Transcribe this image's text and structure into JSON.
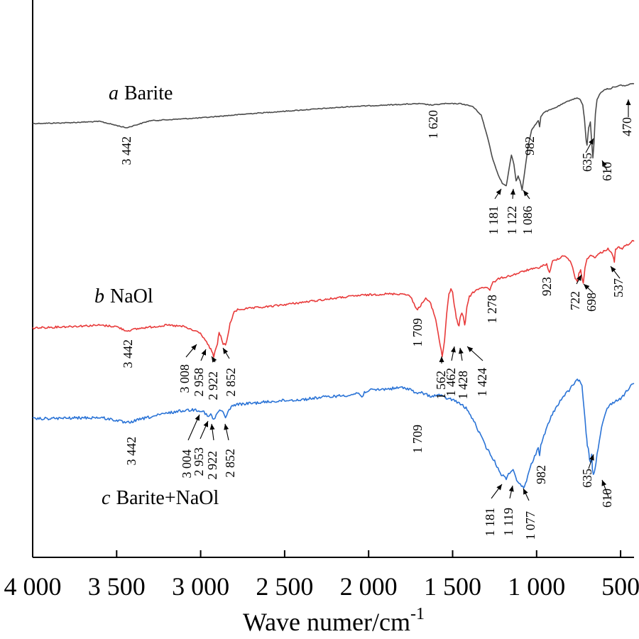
{
  "chart_data": {
    "type": "line",
    "xlabel": "Wave numer/cm",
    "xlabel_sup": "-1",
    "ylabel": "",
    "xlim": [
      4000,
      420
    ],
    "x_reversed": true,
    "xticks": [
      {
        "value": 4000,
        "label": "4 000"
      },
      {
        "value": 3500,
        "label": "3 500"
      },
      {
        "value": 3000,
        "label": "3 000"
      },
      {
        "value": 2500,
        "label": "2 500"
      },
      {
        "value": 2000,
        "label": "2 000"
      },
      {
        "value": 1500,
        "label": "1 500"
      },
      {
        "value": 1000,
        "label": "1 000"
      },
      {
        "value": 500,
        "label": "500"
      }
    ],
    "grid": false,
    "legend": "none",
    "series": [
      {
        "key": "a",
        "prefix": "a",
        "label": "Barite",
        "color": "#4a4a4a",
        "noise": 0.6,
        "points": [
          [
            4000,
            174
          ],
          [
            3800,
            173
          ],
          [
            3600,
            171
          ],
          [
            3442,
            180
          ],
          [
            3300,
            170
          ],
          [
            3000,
            166
          ],
          [
            2700,
            160
          ],
          [
            2400,
            155
          ],
          [
            2100,
            150
          ],
          [
            1900,
            148
          ],
          [
            1700,
            146
          ],
          [
            1620,
            148
          ],
          [
            1550,
            146
          ],
          [
            1450,
            146
          ],
          [
            1380,
            150
          ],
          [
            1330,
            162
          ],
          [
            1290,
            195
          ],
          [
            1260,
            225
          ],
          [
            1230,
            245
          ],
          [
            1205,
            258
          ],
          [
            1181,
            262
          ],
          [
            1165,
            240
          ],
          [
            1150,
            218
          ],
          [
            1135,
            232
          ],
          [
            1122,
            255
          ],
          [
            1110,
            248
          ],
          [
            1098,
            255
          ],
          [
            1086,
            268
          ],
          [
            1070,
            240
          ],
          [
            1050,
            205
          ],
          [
            1030,
            183
          ],
          [
            1005,
            175
          ],
          [
            990,
            170
          ],
          [
            982,
            178
          ],
          [
            975,
            164
          ],
          [
            955,
            158
          ],
          [
            900,
            153
          ],
          [
            850,
            147
          ],
          [
            800,
            141
          ],
          [
            760,
            138
          ],
          [
            740,
            140
          ],
          [
            725,
            148
          ],
          [
            715,
            168
          ],
          [
            705,
            198
          ],
          [
            700,
            205
          ],
          [
            690,
            180
          ],
          [
            680,
            172
          ],
          [
            672,
            200
          ],
          [
            665,
            222
          ],
          [
            658,
            200
          ],
          [
            650,
            160
          ],
          [
            640,
            140
          ],
          [
            620,
            131
          ],
          [
            600,
            127
          ],
          [
            580,
            125
          ],
          [
            560,
            125
          ],
          [
            540,
            122
          ],
          [
            520,
            122
          ],
          [
            500,
            120
          ],
          [
            470,
            121
          ],
          [
            440,
            118
          ],
          [
            420,
            118
          ]
        ]
      },
      {
        "key": "b",
        "prefix": "b",
        "label": "NaOl",
        "color": "#e83a3a",
        "noise": 1.4,
        "points": [
          [
            4000,
            462
          ],
          [
            3800,
            460
          ],
          [
            3600,
            458
          ],
          [
            3500,
            460
          ],
          [
            3442,
            466
          ],
          [
            3350,
            462
          ],
          [
            3200,
            458
          ],
          [
            3100,
            460
          ],
          [
            3050,
            465
          ],
          [
            3008,
            468
          ],
          [
            2980,
            476
          ],
          [
            2958,
            485
          ],
          [
            2940,
            492
          ],
          [
            2922,
            502
          ],
          [
            2900,
            484
          ],
          [
            2890,
            468
          ],
          [
            2880,
            474
          ],
          [
            2866,
            484
          ],
          [
            2852,
            486
          ],
          [
            2838,
            474
          ],
          [
            2825,
            455
          ],
          [
            2800,
            440
          ],
          [
            2780,
            436
          ],
          [
            2600,
            432
          ],
          [
            2400,
            426
          ],
          [
            2200,
            420
          ],
          [
            2050,
            416
          ],
          [
            1900,
            414
          ],
          [
            1780,
            414
          ],
          [
            1750,
            418
          ],
          [
            1730,
            428
          ],
          [
            1709,
            436
          ],
          [
            1690,
            430
          ],
          [
            1660,
            420
          ],
          [
            1630,
            428
          ],
          [
            1600,
            450
          ],
          [
            1580,
            478
          ],
          [
            1562,
            502
          ],
          [
            1548,
            480
          ],
          [
            1535,
            440
          ],
          [
            1522,
            414
          ],
          [
            1510,
            408
          ],
          [
            1500,
            412
          ],
          [
            1490,
            430
          ],
          [
            1478,
            448
          ],
          [
            1470,
            455
          ],
          [
            1462,
            458
          ],
          [
            1455,
            448
          ],
          [
            1445,
            440
          ],
          [
            1436,
            446
          ],
          [
            1428,
            458
          ],
          [
            1424,
            452
          ],
          [
            1415,
            432
          ],
          [
            1400,
            418
          ],
          [
            1380,
            412
          ],
          [
            1340,
            406
          ],
          [
            1300,
            404
          ],
          [
            1278,
            408
          ],
          [
            1260,
            398
          ],
          [
            1220,
            392
          ],
          [
            1150,
            388
          ],
          [
            1100,
            384
          ],
          [
            1050,
            380
          ],
          [
            1000,
            378
          ],
          [
            960,
            374
          ],
          [
            940,
            372
          ],
          [
            923,
            385
          ],
          [
            905,
            368
          ],
          [
            870,
            364
          ],
          [
            840,
            360
          ],
          [
            820,
            362
          ],
          [
            800,
            368
          ],
          [
            785,
            378
          ],
          [
            770,
            392
          ],
          [
            758,
            396
          ],
          [
            748,
            386
          ],
          [
            738,
            380
          ],
          [
            730,
            390
          ],
          [
            722,
            400
          ],
          [
            712,
            378
          ],
          [
            700,
            364
          ],
          [
            680,
            360
          ],
          [
            650,
            362
          ],
          [
            620,
            356
          ],
          [
            600,
            354
          ],
          [
            575,
            350
          ],
          [
            555,
            355
          ],
          [
            545,
            362
          ],
          [
            537,
            368
          ],
          [
            530,
            352
          ],
          [
            510,
            348
          ],
          [
            490,
            350
          ],
          [
            470,
            346
          ],
          [
            450,
            343
          ],
          [
            430,
            340
          ],
          [
            420,
            340
          ]
        ]
      },
      {
        "key": "c",
        "prefix": "c",
        "label": "Barite+NaOl",
        "color": "#2a73d6",
        "noise": 2.0,
        "points": [
          [
            4000,
            590
          ],
          [
            3800,
            589
          ],
          [
            3600,
            588
          ],
          [
            3500,
            592
          ],
          [
            3442,
            596
          ],
          [
            3350,
            590
          ],
          [
            3200,
            582
          ],
          [
            3100,
            578
          ],
          [
            3030,
            577
          ],
          [
            3004,
            578
          ],
          [
            2980,
            580
          ],
          [
            2953,
            588
          ],
          [
            2940,
            583
          ],
          [
            2922,
            592
          ],
          [
            2900,
            581
          ],
          [
            2880,
            578
          ],
          [
            2866,
            580
          ],
          [
            2852,
            590
          ],
          [
            2830,
            576
          ],
          [
            2800,
            570
          ],
          [
            2700,
            568
          ],
          [
            2600,
            566
          ],
          [
            2500,
            564
          ],
          [
            2400,
            563
          ],
          [
            2300,
            560
          ],
          [
            2200,
            558
          ],
          [
            2100,
            556
          ],
          [
            2060,
            553
          ],
          [
            2040,
            560
          ],
          [
            2025,
            552
          ],
          [
            2000,
            550
          ],
          [
            1900,
            548
          ],
          [
            1800,
            546
          ],
          [
            1750,
            548
          ],
          [
            1709,
            556
          ],
          [
            1690,
            552
          ],
          [
            1660,
            556
          ],
          [
            1620,
            558
          ],
          [
            1580,
            556
          ],
          [
            1550,
            560
          ],
          [
            1500,
            563
          ],
          [
            1460,
            568
          ],
          [
            1420,
            575
          ],
          [
            1380,
            590
          ],
          [
            1340,
            610
          ],
          [
            1300,
            630
          ],
          [
            1250,
            650
          ],
          [
            1210,
            668
          ],
          [
            1181,
            674
          ],
          [
            1160,
            665
          ],
          [
            1140,
            662
          ],
          [
            1125,
            670
          ],
          [
            1119,
            676
          ],
          [
            1105,
            680
          ],
          [
            1090,
            686
          ],
          [
            1077,
            686
          ],
          [
            1060,
            676
          ],
          [
            1045,
            664
          ],
          [
            1025,
            650
          ],
          [
            1005,
            640
          ],
          [
            990,
            630
          ],
          [
            982,
            640
          ],
          [
            975,
            628
          ],
          [
            950,
            610
          ],
          [
            920,
            590
          ],
          [
            880,
            572
          ],
          [
            840,
            558
          ],
          [
            800,
            548
          ],
          [
            770,
            538
          ],
          [
            745,
            534
          ],
          [
            730,
            545
          ],
          [
            718,
            575
          ],
          [
            705,
            610
          ],
          [
            698,
            628
          ],
          [
            692,
            632
          ],
          [
            685,
            648
          ],
          [
            678,
            650
          ],
          [
            672,
            638
          ],
          [
            668,
            660
          ],
          [
            662,
            668
          ],
          [
            652,
            660
          ],
          [
            640,
            640
          ],
          [
            620,
            610
          ],
          [
            600,
            590
          ],
          [
            580,
            575
          ],
          [
            560,
            570
          ],
          [
            540,
            566
          ],
          [
            520,
            564
          ],
          [
            500,
            561
          ],
          [
            480,
            556
          ],
          [
            460,
            550
          ],
          [
            440,
            544
          ],
          [
            420,
            540
          ]
        ]
      }
    ],
    "annotations": {
      "a": [
        "3 442",
        "1 620",
        "1 181",
        "1 122",
        "1 086",
        "982",
        "635",
        "610",
        "470"
      ],
      "b": [
        "3 442",
        "3 008",
        "2 958",
        "2 922",
        "2 852",
        "1 709",
        "1 562",
        "1 462",
        "1 428",
        "1 424",
        "1 278",
        "923",
        "722",
        "698",
        "537"
      ],
      "c": [
        "3 442",
        "3 004",
        "2 953",
        "2 922",
        "2 852",
        "1 709",
        "1 181",
        "1 119",
        "1 077",
        "982",
        "635",
        "610"
      ]
    }
  }
}
